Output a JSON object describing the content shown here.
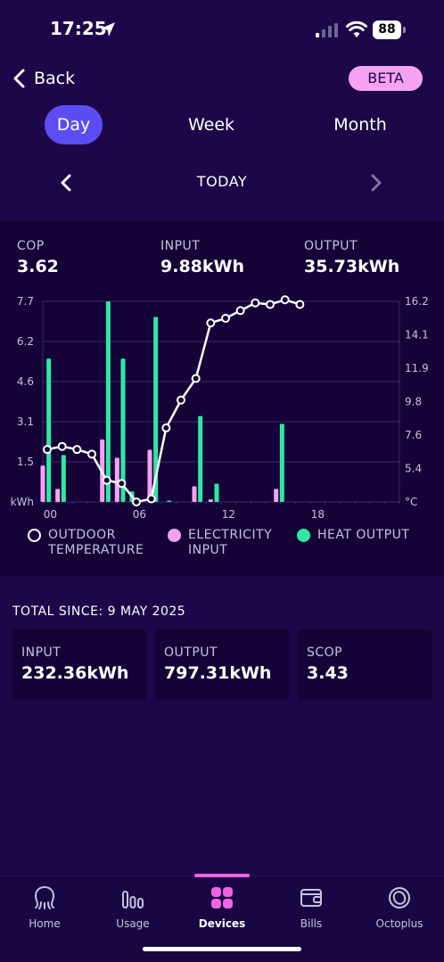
{
  "status_bar": {
    "time": "17:25",
    "battery": "88"
  },
  "header": {
    "back_label": "Back",
    "badge": "BETA"
  },
  "period_tabs": [
    {
      "label": "Day",
      "active": true
    },
    {
      "label": "Week",
      "active": false
    },
    {
      "label": "Month",
      "active": false
    }
  ],
  "date_nav": {
    "label": "TODAY"
  },
  "stats": {
    "cop": {
      "label": "COP",
      "value": "3.62"
    },
    "input": {
      "label": "INPUT",
      "value": "9.88kWh"
    },
    "output": {
      "label": "OUTPUT",
      "value": "35.73kWh"
    }
  },
  "chart_data": {
    "type": "bar",
    "left_axis": {
      "unit": "kWh",
      "ticks": [
        "1.5",
        "3.1",
        "4.6",
        "6.2",
        "7.7"
      ],
      "range": [
        0,
        7.7
      ]
    },
    "right_axis": {
      "unit": "°C",
      "ticks": [
        "5.4",
        "7.6",
        "9.8",
        "11.9",
        "14.1",
        "16.2"
      ],
      "range": [
        3.2,
        16.2
      ]
    },
    "x_ticks": [
      "00",
      "06",
      "12",
      "18"
    ],
    "x_range": [
      0,
      24
    ],
    "series": [
      {
        "name": "HEAT OUTPUT",
        "kind": "bar",
        "axis": "left",
        "color": "#2ee8a4",
        "values": [
          {
            "hour": 0.4,
            "v": 5.5
          },
          {
            "hour": 1.4,
            "v": 1.8
          },
          {
            "hour": 4.4,
            "v": 7.7
          },
          {
            "hour": 5.4,
            "v": 5.5
          },
          {
            "hour": 6.0,
            "v": 0.4
          },
          {
            "hour": 7.6,
            "v": 7.1
          },
          {
            "hour": 8.5,
            "v": 0.05
          },
          {
            "hour": 10.6,
            "v": 3.3
          },
          {
            "hour": 11.7,
            "v": 0.7
          },
          {
            "hour": 16.1,
            "v": 3.0
          }
        ]
      },
      {
        "name": "ELECTRICITY INPUT",
        "kind": "bar",
        "axis": "left",
        "color": "#f5a3f0",
        "values": [
          {
            "hour": 0.0,
            "v": 1.4
          },
          {
            "hour": 1.0,
            "v": 0.5
          },
          {
            "hour": 4.0,
            "v": 2.4
          },
          {
            "hour": 5.0,
            "v": 1.7
          },
          {
            "hour": 7.2,
            "v": 2.0
          },
          {
            "hour": 10.2,
            "v": 0.6
          },
          {
            "hour": 11.3,
            "v": 0.1
          },
          {
            "hour": 15.7,
            "v": 0.5
          }
        ]
      },
      {
        "name": "OUTDOOR TEMPERATURE",
        "kind": "line",
        "axis": "right",
        "color": "#ffffff",
        "values": [
          {
            "hour": 0.3,
            "v": 6.6
          },
          {
            "hour": 1.3,
            "v": 6.8
          },
          {
            "hour": 2.3,
            "v": 6.6
          },
          {
            "hour": 3.3,
            "v": 6.3
          },
          {
            "hour": 4.3,
            "v": 4.6
          },
          {
            "hour": 5.3,
            "v": 4.4
          },
          {
            "hour": 6.3,
            "v": 3.2
          },
          {
            "hour": 7.3,
            "v": 3.4
          },
          {
            "hour": 8.3,
            "v": 8.0
          },
          {
            "hour": 9.3,
            "v": 9.8
          },
          {
            "hour": 10.3,
            "v": 11.2
          },
          {
            "hour": 11.3,
            "v": 14.8
          },
          {
            "hour": 12.3,
            "v": 15.1
          },
          {
            "hour": 13.3,
            "v": 15.6
          },
          {
            "hour": 14.3,
            "v": 16.1
          },
          {
            "hour": 15.3,
            "v": 16.0
          },
          {
            "hour": 16.3,
            "v": 16.3
          },
          {
            "hour": 17.3,
            "v": 16.0
          }
        ]
      }
    ],
    "legend": [
      {
        "label": "OUTDOOR TEMPERATURE",
        "style": "ring",
        "color": "#ffffff"
      },
      {
        "label": "ELECTRICITY INPUT",
        "style": "dot",
        "color": "#f5a3f0"
      },
      {
        "label": "HEAT OUTPUT",
        "style": "dot",
        "color": "#2ee8a4"
      }
    ]
  },
  "totals": {
    "title": "TOTAL SINCE: 9 MAY 2025",
    "cards": [
      {
        "label": "INPUT",
        "value": "232.36kWh"
      },
      {
        "label": "OUTPUT",
        "value": "797.31kWh"
      },
      {
        "label": "SCOP",
        "value": "3.43"
      }
    ]
  },
  "bottom_nav": [
    {
      "label": "Home",
      "icon": "octopus-icon",
      "active": false
    },
    {
      "label": "Usage",
      "icon": "bar-chart-icon",
      "active": false
    },
    {
      "label": "Devices",
      "icon": "grid-icon",
      "active": true
    },
    {
      "label": "Bills",
      "icon": "wallet-icon",
      "active": false
    },
    {
      "label": "Octoplus",
      "icon": "coin-icon",
      "active": false
    }
  ],
  "colors": {
    "background": "#1c0848",
    "panel": "#150337",
    "accent": "#5b4df3",
    "badge": "#f5a3f0"
  }
}
